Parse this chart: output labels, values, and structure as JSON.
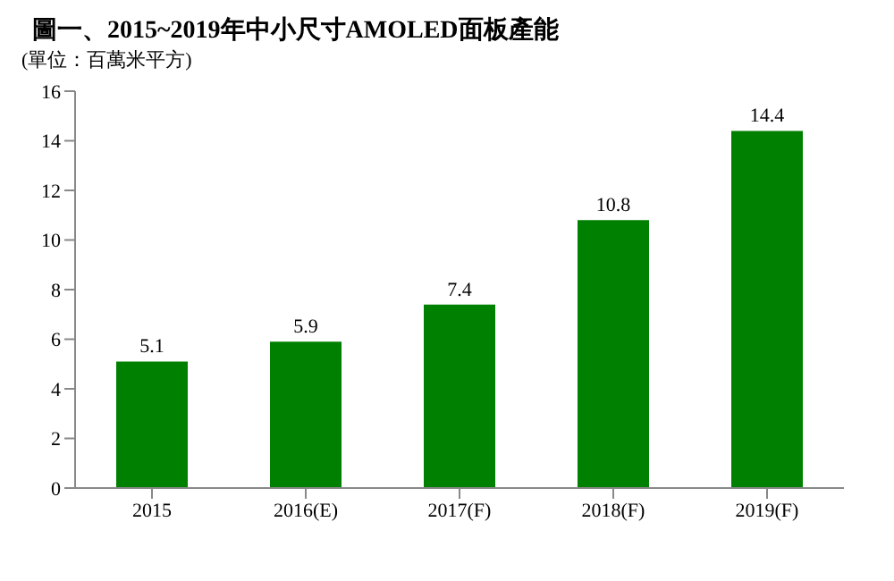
{
  "chart_data": {
    "type": "bar",
    "title": "圖一、2015~2019年中小尺寸AMOLED面板產能",
    "subtitle": "(單位：百萬米平方)",
    "categories": [
      "2015",
      "2016(E)",
      "2017(F)",
      "2018(F)",
      "2019(F)"
    ],
    "values": [
      5.1,
      5.9,
      7.4,
      10.8,
      14.4
    ],
    "color": "#008000",
    "ylim": [
      0,
      16
    ],
    "yticks": [
      0,
      2,
      4,
      6,
      8,
      10,
      12,
      14,
      16
    ],
    "data_labels": true,
    "grid": false
  }
}
